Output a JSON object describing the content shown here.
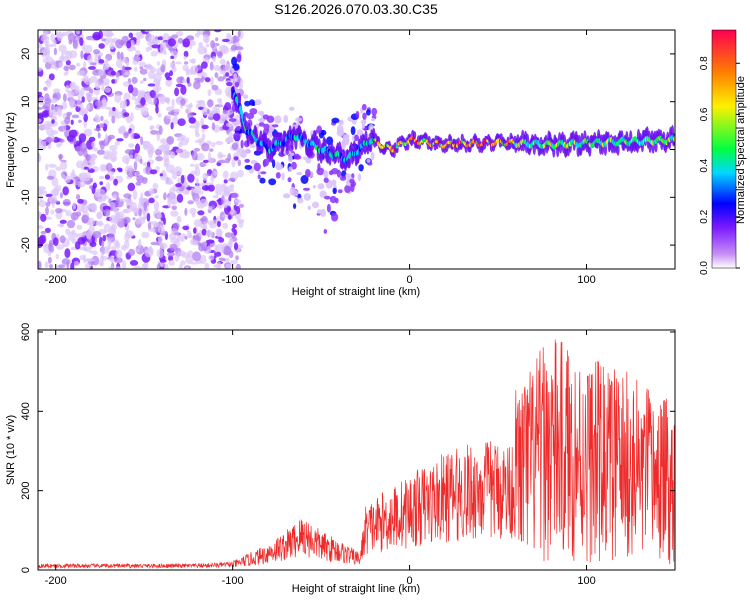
{
  "title": "S126.2026.070.03.30.C35",
  "chart_data": [
    {
      "type": "heatmap",
      "name": "spectrogram",
      "xlabel": "Height of straight line (km)",
      "ylabel": "Frequency (Hz)",
      "xlim": [
        -210,
        150
      ],
      "ylim": [
        -25,
        25
      ],
      "xticks": [
        -200,
        -100,
        0,
        100
      ],
      "yticks": [
        -20,
        -10,
        0,
        10,
        20
      ],
      "colorbar": {
        "label": "Normalized spectral amplitude",
        "range": [
          0,
          0.93
        ],
        "ticks": [
          "0.0",
          "0.2",
          "0.4",
          "0.6",
          "0.8"
        ],
        "tick_values": [
          0.0,
          0.2,
          0.4,
          0.6,
          0.8
        ],
        "colors": [
          "#ffffff",
          "#c88cf5",
          "#7a1aff",
          "#0000ff",
          "#00d8ff",
          "#00ff40",
          "#fff000",
          "#ff8000",
          "#ff0050"
        ]
      },
      "ridge_frequency_hz": [
        {
          "x": -100,
          "y": 13
        },
        {
          "x": -92,
          "y": 4
        },
        {
          "x": -80,
          "y": 0
        },
        {
          "x": -65,
          "y": 3
        },
        {
          "x": -50,
          "y": 0
        },
        {
          "x": -35,
          "y": -2
        },
        {
          "x": -22,
          "y": 2
        },
        {
          "x": -10,
          "y": 0
        },
        {
          "x": 0,
          "y": 2
        },
        {
          "x": 20,
          "y": 1
        },
        {
          "x": 50,
          "y": 1.5
        },
        {
          "x": 80,
          "y": 1
        },
        {
          "x": 110,
          "y": 1.5
        },
        {
          "x": 150,
          "y": 2
        }
      ]
    },
    {
      "type": "line",
      "name": "snr",
      "xlabel": "Height of straight line (km)",
      "ylabel": "SNR (10 * v/v)",
      "xlim": [
        -210,
        150
      ],
      "ylim": [
        0,
        605
      ],
      "xticks": [
        -200,
        -100,
        0,
        100
      ],
      "yticks": [
        0,
        200,
        400,
        600
      ],
      "color": "#ee2a2a",
      "envelope": [
        {
          "x": -210,
          "y": 15
        },
        {
          "x": -120,
          "y": 15
        },
        {
          "x": -100,
          "y": 20
        },
        {
          "x": -85,
          "y": 50
        },
        {
          "x": -70,
          "y": 90
        },
        {
          "x": -60,
          "y": 130
        },
        {
          "x": -50,
          "y": 90
        },
        {
          "x": -40,
          "y": 70
        },
        {
          "x": -28,
          "y": 40
        },
        {
          "x": -25,
          "y": 150
        },
        {
          "x": -15,
          "y": 180
        },
        {
          "x": 0,
          "y": 220
        },
        {
          "x": 20,
          "y": 270
        },
        {
          "x": 40,
          "y": 300
        },
        {
          "x": 55,
          "y": 300
        },
        {
          "x": 65,
          "y": 330
        },
        {
          "x": 80,
          "y": 400
        },
        {
          "x": 100,
          "y": 360
        },
        {
          "x": 120,
          "y": 340
        },
        {
          "x": 140,
          "y": 300
        },
        {
          "x": 150,
          "y": 280
        }
      ]
    }
  ]
}
